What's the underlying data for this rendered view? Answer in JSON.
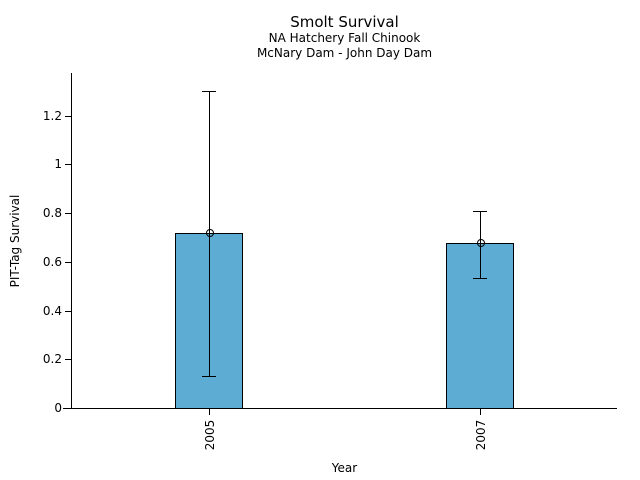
{
  "chart_data": {
    "type": "bar",
    "title": "Smolt Survival",
    "subtitle": [
      "NA Hatchery Fall Chinook",
      "McNary Dam - John Day Dam"
    ],
    "xlabel": "Year",
    "ylabel": "PIT-Tag Survival",
    "categories": [
      "2005",
      "2007"
    ],
    "series": [
      {
        "name": "PIT-Tag Survival",
        "values": [
          0.72,
          0.675
        ],
        "error_upper": [
          1.3,
          0.81
        ],
        "error_lower": [
          0.13,
          0.535
        ]
      }
    ],
    "ylim": [
      0,
      1.35
    ],
    "yticks": [
      0,
      0.2,
      0.4,
      0.6,
      0.8,
      1,
      1.2
    ],
    "ytick_labels": [
      "0",
      "0.2",
      "0.4",
      "0.6",
      "0.8",
      "1",
      "1.2"
    ],
    "bar_color": "#5CACD4",
    "edge_color": "#000000",
    "text_color": "#000000",
    "grid": false,
    "legend": "none",
    "axis_style": "open-left-bottom"
  }
}
